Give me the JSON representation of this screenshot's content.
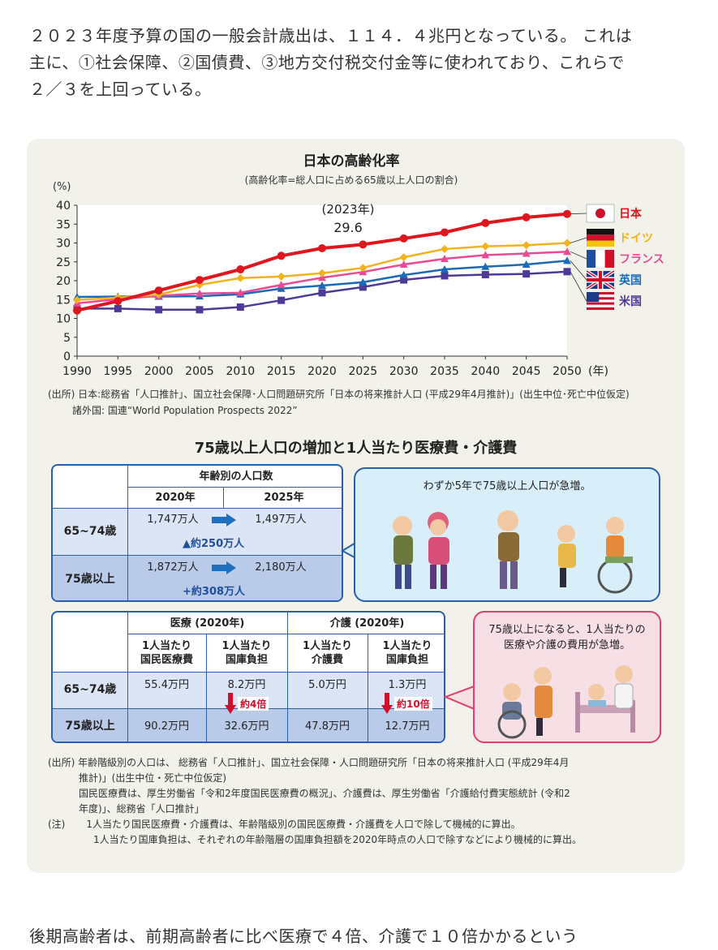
{
  "intro": {
    "line1": "２０２３年度予算の国の一般会計歳出は、１１４．４兆円となっている。 これは",
    "line2": "主に、①社会保障、②国債費、③地方交付税交付金等に使われており、これらで",
    "line3": "２／３を上回っている。"
  },
  "chart_data": {
    "type": "line",
    "title": "日本の高齢化率",
    "subtitle": "(高齢化率=総人口に占める65歳以上人口の割合)",
    "ylabel": "(%)",
    "xlabel": "(年)",
    "ylim": [
      0,
      40
    ],
    "yticks": [
      "0",
      "5",
      "10",
      "15",
      "20",
      "25",
      "30",
      "35",
      "40"
    ],
    "x": [
      "1990",
      "1995",
      "2000",
      "2005",
      "2010",
      "2015",
      "2020",
      "2025",
      "2030",
      "2035",
      "2040",
      "2045",
      "2050"
    ],
    "grid": false,
    "legend": "right",
    "annotation": {
      "line1": "(2023年)",
      "line2": "29.6"
    },
    "series": [
      {
        "name": "日本",
        "color": "#e0161e",
        "marker": "circle",
        "values": [
          12.1,
          14.6,
          17.4,
          20.2,
          23.0,
          26.6,
          28.6,
          29.6,
          31.2,
          32.8,
          35.3,
          36.8,
          37.7
        ]
      },
      {
        "name": "ドイツ",
        "color": "#f2b21c",
        "marker": "diamond",
        "values": [
          14.9,
          15.5,
          16.3,
          18.9,
          20.7,
          21.1,
          22.0,
          23.4,
          26.2,
          28.4,
          29.1,
          29.4,
          30.0
        ]
      },
      {
        "name": "フランス",
        "color": "#e84a94",
        "marker": "triangle",
        "values": [
          14.0,
          15.1,
          16.0,
          16.6,
          16.8,
          18.9,
          20.8,
          22.3,
          24.3,
          25.8,
          26.8,
          27.2,
          27.7
        ]
      },
      {
        "name": "英国",
        "color": "#1a6ab8",
        "marker": "triangle",
        "values": [
          15.7,
          15.8,
          15.8,
          15.9,
          16.4,
          17.9,
          18.7,
          19.6,
          21.5,
          23.0,
          23.7,
          24.3,
          25.3
        ]
      },
      {
        "name": "米国",
        "color": "#4d3a96",
        "marker": "square",
        "values": [
          12.6,
          12.6,
          12.3,
          12.3,
          13.0,
          14.8,
          16.8,
          18.3,
          20.2,
          21.3,
          21.6,
          21.8,
          22.4
        ]
      }
    ]
  },
  "source1": {
    "line1": "(出所) 日本:総務省「人口推計」、国立社会保障･人口問題研究所「日本の将来推計人口 (平成29年4月推計)」(出生中位･死亡中位仮定)",
    "line2": "諸外国: 国連“World Population Prospects 2022”"
  },
  "section2": {
    "title": "75歳以上人口の増加と1人当たり医療費・介護費"
  },
  "pop_table": {
    "header": "年齢別の人口数",
    "col1": "2020年",
    "col2": "2025年",
    "rows": [
      {
        "label": "65~74歳",
        "v2020": "1,747万人",
        "v2025": "1,497万人",
        "change": "▲約250万人"
      },
      {
        "label": "75歳以上",
        "v2020": "1,872万人",
        "v2025": "2,180万人",
        "change": "+約308万人"
      }
    ]
  },
  "bubble1": {
    "text": "わずか5年で75歳以上人口が急増。"
  },
  "cost_table": {
    "group1": "医療 (2020年)",
    "group2": "介護 (2020年)",
    "sub1": "1人当たり\n国民医療費",
    "sub2": "1人当たり\n国庫負担",
    "sub3": "1人当たり\n介護費",
    "sub4": "1人当たり\n国庫負担",
    "rows": [
      {
        "label": "65~74歳",
        "c1": "55.4万円",
        "c2": "8.2万円",
        "c3": "5.0万円",
        "c4": "1.3万円"
      },
      {
        "label": "75歳以上",
        "c1": "90.2万円",
        "c2": "32.6万円",
        "c3": "47.8万円",
        "c4": "12.7万円"
      }
    ],
    "mult1": "約4倍",
    "mult2": "約10倍"
  },
  "bubble2": {
    "line1": "75歳以上になると、1人当たりの",
    "line2": "医療や介護の費用が急増。"
  },
  "notes": {
    "l1": "(出所) 年齢階級別の人口は、 総務省「人口推計」、国立社会保障・人口問題研究所「日本の将来推計人口 (平成29年4月",
    "l2": "推計)」(出生中位・死亡中位仮定)",
    "l3": "国民医療費は、厚生労働省「令和2年度国民医療費の概況」、介護費は、厚生労働省「介護給付費実態統計 (令和2",
    "l4": "年度)」、総務省「人口推計」",
    "l5a": "(注)",
    "l5b": "1人当たり国民医療費・介護費は、年齢階級別の国民医療費・介護費を人口で除して機械的に算出。",
    "l6": "1人当たり国庫負担は、それぞれの年齢階層の国庫負担額を2020年時点の人口で除すなどにより機械的に算出。"
  },
  "outro": {
    "text": "後期高齢者は、前期高齢者に比べ医療で４倍、介護で１０倍かかるという"
  }
}
